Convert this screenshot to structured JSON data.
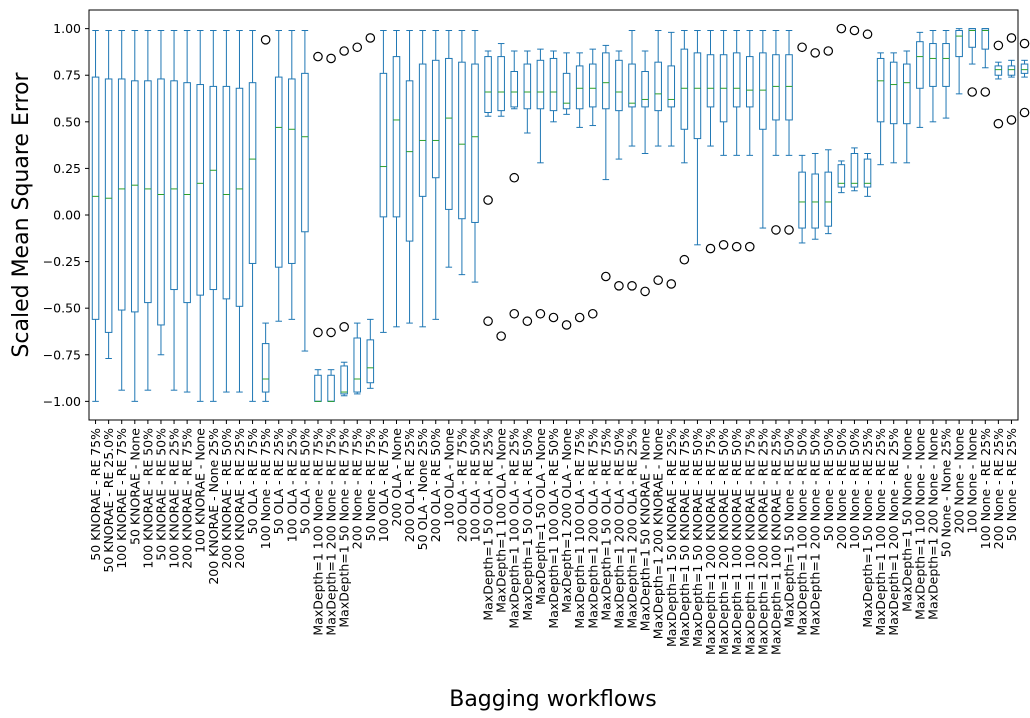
{
  "chart_data": {
    "type": "box",
    "title": "",
    "xlabel": "Bagging workflows",
    "ylabel": "Scaled Mean Square Error",
    "ylim": [
      -1.1,
      1.1
    ],
    "yticks": [
      -1.0,
      -0.75,
      -0.5,
      -0.25,
      0.0,
      0.25,
      0.5,
      0.75,
      1.0
    ],
    "ytick_labels": [
      "−1.00",
      "−0.75",
      "−0.50",
      "−0.25",
      "0.00",
      "0.25",
      "0.50",
      "0.75",
      "1.00"
    ],
    "grid": false,
    "colors": {
      "box": "#1f77b4",
      "median": "#2ca02c",
      "outlier": "#000000",
      "axis": "#000000"
    },
    "categories": [
      "50 KNORAE - RE 75%",
      "50 KNORAE - RE 25.0%",
      "100 KNORAE - RE 75%",
      "50 KNORAE - None",
      "100 KNORAE - RE 50%",
      "50 KNORAE - RE 50%",
      "100 KNORAE - RE 25%",
      "200 KNORAE - RE 75%",
      "100 KNORAE - None",
      "200 KNORAE - None 25%",
      "200 KNORAE - RE 50%",
      "200 KNORAE - RE 25%",
      "50 OLA - RE 75%",
      "100 None - RE 75%",
      "50 OLA - RE 25%",
      "100 OLA - RE 25%",
      "50 OLA - RE 50%",
      "MaxDepth=1 100 None - RE 75%",
      "MaxDepth=1 200 None - RE 75%",
      "MaxDepth=1 50 None - RE 75%",
      "200 None - RE 75%",
      "50 None - RE 75%",
      "100 OLA - RE 75%",
      "200 OLA - None",
      "200 OLA - RE 25%",
      "50 OLA - None 25%",
      "200 OLA - RE 50%",
      "100 OLA - None",
      "200 OLA - RE 75%",
      "100 OLA - RE 50%",
      "MaxDepth=1 50 OLA - RE 25%",
      "MaxDepth=1 100 OLA - None",
      "MaxDepth=1 100 OLA - RE 25%",
      "MaxDepth=1 50 OLA - RE 50%",
      "MaxDepth=1 50 OLA - None",
      "MaxDepth=1 100 OLA - RE 50%",
      "MaxDepth=1 200 OLA - None",
      "MaxDepth=1 100 OLA - RE 75%",
      "MaxDepth=1 200 OLA - RE 75%",
      "MaxDepth=1 50 OLA - RE 75%",
      "MaxDepth=1 200 OLA - RE 50%",
      "MaxDepth=1 200 OLA - RE 25%",
      "MaxDepth=1 50 KNORAE - None",
      "MaxDepth=1 200 KNORAE - None",
      "MaxDepth=1 50 KNORAE - RE 25%",
      "MaxDepth=1 50 KNORAE - RE 75%",
      "MaxDepth=1 50 KNORAE - RE 50%",
      "MaxDepth=1 200 KNORAE - RE 75%",
      "MaxDepth=1 200 KNORAE - RE 50%",
      "MaxDepth=1 100 KNORAE - RE 50%",
      "MaxDepth=1 100 KNORAE - RE 75%",
      "MaxDepth=1 200 KNORAE - RE 25%",
      "MaxDepth=1 100 KNORAE - RE 25%",
      "MaxDepth=1 50 None - RE 50%",
      "MaxDepth=1 100 None - RE 50%",
      "MaxDepth=1 200 None - RE 50%",
      "50 None - RE 50%",
      "200 None - RE 50%",
      "100 None - RE 50%",
      "MaxDepth=1 50 None - RE 25%",
      "MaxDepth=1 100 None - RE 25%",
      "MaxDepth=1 200 None - RE 25%",
      "MaxDepth=1 50 None - None",
      "MaxDepth=1 100 None - None",
      "MaxDepth=1 200 None - None",
      "50 None - None 25%",
      "200 None - None",
      "100 None - None",
      "100 None - RE 25%",
      "200 None - RE 25%",
      "50 None - RE 25%"
    ],
    "boxes": [
      {
        "q1": -0.56,
        "median": 0.1,
        "q3": 0.74,
        "wlo": -1.0,
        "whi": 0.99,
        "fliers": []
      },
      {
        "q1": -0.63,
        "median": 0.09,
        "q3": 0.73,
        "wlo": -0.77,
        "whi": 0.99,
        "fliers": []
      },
      {
        "q1": -0.51,
        "median": 0.14,
        "q3": 0.73,
        "wlo": -0.94,
        "whi": 0.99,
        "fliers": []
      },
      {
        "q1": -0.52,
        "median": 0.16,
        "q3": 0.72,
        "wlo": -1.0,
        "whi": 0.99,
        "fliers": []
      },
      {
        "q1": -0.47,
        "median": 0.14,
        "q3": 0.72,
        "wlo": -0.94,
        "whi": 0.99,
        "fliers": []
      },
      {
        "q1": -0.59,
        "median": 0.11,
        "q3": 0.73,
        "wlo": -0.75,
        "whi": 0.99,
        "fliers": []
      },
      {
        "q1": -0.4,
        "median": 0.14,
        "q3": 0.72,
        "wlo": -0.94,
        "whi": 0.99,
        "fliers": []
      },
      {
        "q1": -0.47,
        "median": 0.11,
        "q3": 0.71,
        "wlo": -0.95,
        "whi": 0.99,
        "fliers": []
      },
      {
        "q1": -0.43,
        "median": 0.17,
        "q3": 0.7,
        "wlo": -1.0,
        "whi": 0.99,
        "fliers": []
      },
      {
        "q1": -0.4,
        "median": 0.24,
        "q3": 0.69,
        "wlo": -1.0,
        "whi": 0.99,
        "fliers": []
      },
      {
        "q1": -0.45,
        "median": 0.11,
        "q3": 0.69,
        "wlo": -0.95,
        "whi": 0.99,
        "fliers": []
      },
      {
        "q1": -0.49,
        "median": 0.14,
        "q3": 0.68,
        "wlo": -0.95,
        "whi": 0.99,
        "fliers": []
      },
      {
        "q1": -0.26,
        "median": 0.3,
        "q3": 0.71,
        "wlo": -1.0,
        "whi": 0.99,
        "fliers": []
      },
      {
        "q1": -0.95,
        "median": -0.88,
        "q3": -0.69,
        "wlo": -1.0,
        "whi": -0.58,
        "fliers": [
          0.94
        ]
      },
      {
        "q1": -0.28,
        "median": 0.47,
        "q3": 0.74,
        "wlo": -0.57,
        "whi": 0.99,
        "fliers": []
      },
      {
        "q1": -0.26,
        "median": 0.46,
        "q3": 0.73,
        "wlo": -0.56,
        "whi": 0.99,
        "fliers": []
      },
      {
        "q1": -0.09,
        "median": 0.42,
        "q3": 0.76,
        "wlo": -0.73,
        "whi": 0.99,
        "fliers": []
      },
      {
        "q1": -1.0,
        "median": -1.0,
        "q3": -0.86,
        "wlo": -1.0,
        "whi": -0.83,
        "fliers": [
          0.85,
          -0.63
        ]
      },
      {
        "q1": -1.0,
        "median": -1.0,
        "q3": -0.86,
        "wlo": -1.0,
        "whi": -0.83,
        "fliers": [
          0.84,
          -0.63
        ]
      },
      {
        "q1": -0.96,
        "median": -0.95,
        "q3": -0.81,
        "wlo": -0.97,
        "whi": -0.79,
        "fliers": [
          0.88,
          -0.6
        ]
      },
      {
        "q1": -0.95,
        "median": -0.88,
        "q3": -0.66,
        "wlo": -0.96,
        "whi": -0.58,
        "fliers": [
          0.9
        ]
      },
      {
        "q1": -0.9,
        "median": -0.82,
        "q3": -0.67,
        "wlo": -0.93,
        "whi": -0.56,
        "fliers": [
          0.95
        ]
      },
      {
        "q1": -0.01,
        "median": 0.26,
        "q3": 0.76,
        "wlo": -0.63,
        "whi": 0.99,
        "fliers": []
      },
      {
        "q1": -0.01,
        "median": 0.51,
        "q3": 0.85,
        "wlo": -0.6,
        "whi": 0.99,
        "fliers": []
      },
      {
        "q1": -0.14,
        "median": 0.34,
        "q3": 0.72,
        "wlo": -0.58,
        "whi": 0.99,
        "fliers": []
      },
      {
        "q1": 0.1,
        "median": 0.4,
        "q3": 0.81,
        "wlo": -0.6,
        "whi": 0.99,
        "fliers": []
      },
      {
        "q1": 0.2,
        "median": 0.4,
        "q3": 0.83,
        "wlo": -0.56,
        "whi": 0.99,
        "fliers": []
      },
      {
        "q1": 0.03,
        "median": 0.52,
        "q3": 0.84,
        "wlo": -0.28,
        "whi": 0.99,
        "fliers": []
      },
      {
        "q1": -0.02,
        "median": 0.38,
        "q3": 0.82,
        "wlo": -0.32,
        "whi": 0.99,
        "fliers": []
      },
      {
        "q1": -0.04,
        "median": 0.42,
        "q3": 0.81,
        "wlo": -0.36,
        "whi": 0.99,
        "fliers": []
      },
      {
        "q1": 0.55,
        "median": 0.66,
        "q3": 0.85,
        "wlo": 0.53,
        "whi": 0.88,
        "fliers": [
          0.08,
          -0.57
        ]
      },
      {
        "q1": 0.56,
        "median": 0.66,
        "q3": 0.85,
        "wlo": 0.53,
        "whi": 0.92,
        "fliers": [
          -0.65
        ]
      },
      {
        "q1": 0.58,
        "median": 0.66,
        "q3": 0.77,
        "wlo": 0.57,
        "whi": 0.88,
        "fliers": [
          0.2,
          -0.53
        ]
      },
      {
        "q1": 0.57,
        "median": 0.66,
        "q3": 0.81,
        "wlo": 0.44,
        "whi": 0.88,
        "fliers": [
          -0.57
        ]
      },
      {
        "q1": 0.57,
        "median": 0.66,
        "q3": 0.83,
        "wlo": 0.28,
        "whi": 0.89,
        "fliers": [
          -0.53
        ]
      },
      {
        "q1": 0.56,
        "median": 0.66,
        "q3": 0.84,
        "wlo": 0.5,
        "whi": 0.88,
        "fliers": [
          -0.55
        ]
      },
      {
        "q1": 0.57,
        "median": 0.6,
        "q3": 0.76,
        "wlo": 0.54,
        "whi": 0.87,
        "fliers": [
          -0.59
        ]
      },
      {
        "q1": 0.57,
        "median": 0.68,
        "q3": 0.8,
        "wlo": 0.47,
        "whi": 0.87,
        "fliers": [
          -0.55
        ]
      },
      {
        "q1": 0.58,
        "median": 0.68,
        "q3": 0.81,
        "wlo": 0.48,
        "whi": 0.89,
        "fliers": [
          -0.53
        ]
      },
      {
        "q1": 0.57,
        "median": 0.71,
        "q3": 0.87,
        "wlo": 0.19,
        "whi": 0.91,
        "fliers": [
          -0.33
        ]
      },
      {
        "q1": 0.56,
        "median": 0.66,
        "q3": 0.83,
        "wlo": 0.3,
        "whi": 0.88,
        "fliers": [
          -0.38
        ]
      },
      {
        "q1": 0.58,
        "median": 0.6,
        "q3": 0.81,
        "wlo": 0.37,
        "whi": 0.99,
        "fliers": [
          -0.38
        ]
      },
      {
        "q1": 0.58,
        "median": 0.62,
        "q3": 0.77,
        "wlo": 0.33,
        "whi": 0.88,
        "fliers": [
          -0.41
        ]
      },
      {
        "q1": 0.56,
        "median": 0.65,
        "q3": 0.82,
        "wlo": 0.37,
        "whi": 0.99,
        "fliers": [
          -0.35
        ]
      },
      {
        "q1": 0.58,
        "median": 0.62,
        "q3": 0.8,
        "wlo": 0.37,
        "whi": 0.98,
        "fliers": [
          -0.37
        ]
      },
      {
        "q1": 0.46,
        "median": 0.68,
        "q3": 0.89,
        "wlo": 0.28,
        "whi": 0.99,
        "fliers": [
          -0.24
        ]
      },
      {
        "q1": 0.41,
        "median": 0.68,
        "q3": 0.87,
        "wlo": -0.16,
        "whi": 0.99,
        "fliers": []
      },
      {
        "q1": 0.58,
        "median": 0.68,
        "q3": 0.86,
        "wlo": 0.37,
        "whi": 0.99,
        "fliers": [
          -0.18
        ]
      },
      {
        "q1": 0.5,
        "median": 0.68,
        "q3": 0.86,
        "wlo": 0.32,
        "whi": 0.99,
        "fliers": [
          -0.16
        ]
      },
      {
        "q1": 0.58,
        "median": 0.68,
        "q3": 0.87,
        "wlo": 0.32,
        "whi": 0.99,
        "fliers": [
          -0.17
        ]
      },
      {
        "q1": 0.58,
        "median": 0.67,
        "q3": 0.85,
        "wlo": 0.32,
        "whi": 0.99,
        "fliers": [
          -0.17
        ]
      },
      {
        "q1": 0.46,
        "median": 0.67,
        "q3": 0.87,
        "wlo": -0.07,
        "whi": 0.99,
        "fliers": []
      },
      {
        "q1": 0.51,
        "median": 0.69,
        "q3": 0.86,
        "wlo": 0.32,
        "whi": 0.99,
        "fliers": [
          -0.08
        ]
      },
      {
        "q1": 0.51,
        "median": 0.69,
        "q3": 0.86,
        "wlo": 0.32,
        "whi": 0.99,
        "fliers": [
          -0.08
        ]
      },
      {
        "q1": -0.07,
        "median": 0.07,
        "q3": 0.23,
        "wlo": -0.15,
        "whi": 0.32,
        "fliers": [
          0.9
        ]
      },
      {
        "q1": -0.07,
        "median": 0.07,
        "q3": 0.22,
        "wlo": -0.13,
        "whi": 0.33,
        "fliers": [
          0.87
        ]
      },
      {
        "q1": -0.06,
        "median": 0.07,
        "q3": 0.23,
        "wlo": -0.1,
        "whi": 0.35,
        "fliers": [
          0.88
        ]
      },
      {
        "q1": 0.15,
        "median": 0.17,
        "q3": 0.27,
        "wlo": 0.12,
        "whi": 0.29,
        "fliers": [
          1.0
        ]
      },
      {
        "q1": 0.15,
        "median": 0.17,
        "q3": 0.33,
        "wlo": 0.13,
        "whi": 0.36,
        "fliers": [
          0.99
        ]
      },
      {
        "q1": 0.15,
        "median": 0.17,
        "q3": 0.3,
        "wlo": 0.1,
        "whi": 0.33,
        "fliers": [
          0.97
        ]
      },
      {
        "q1": 0.5,
        "median": 0.72,
        "q3": 0.84,
        "wlo": 0.27,
        "whi": 0.87,
        "fliers": []
      },
      {
        "q1": 0.49,
        "median": 0.7,
        "q3": 0.82,
        "wlo": 0.28,
        "whi": 0.87,
        "fliers": []
      },
      {
        "q1": 0.49,
        "median": 0.71,
        "q3": 0.81,
        "wlo": 0.28,
        "whi": 0.88,
        "fliers": []
      },
      {
        "q1": 0.68,
        "median": 0.85,
        "q3": 0.93,
        "wlo": 0.47,
        "whi": 0.98,
        "fliers": []
      },
      {
        "q1": 0.69,
        "median": 0.84,
        "q3": 0.92,
        "wlo": 0.5,
        "whi": 0.99,
        "fliers": []
      },
      {
        "q1": 0.69,
        "median": 0.84,
        "q3": 0.92,
        "wlo": 0.52,
        "whi": 0.99,
        "fliers": []
      },
      {
        "q1": 0.85,
        "median": 0.96,
        "q3": 0.99,
        "wlo": 0.65,
        "whi": 1.0,
        "fliers": []
      },
      {
        "q1": 0.9,
        "median": 0.99,
        "q3": 1.0,
        "wlo": 0.81,
        "whi": 1.0,
        "fliers": [
          0.66
        ]
      },
      {
        "q1": 0.89,
        "median": 0.99,
        "q3": 1.0,
        "wlo": 0.79,
        "whi": 1.0,
        "fliers": [
          0.66
        ]
      },
      {
        "q1": 0.75,
        "median": 0.78,
        "q3": 0.8,
        "wlo": 0.73,
        "whi": 0.82,
        "fliers": [
          0.91,
          0.49
        ]
      },
      {
        "q1": 0.75,
        "median": 0.78,
        "q3": 0.8,
        "wlo": 0.74,
        "whi": 0.83,
        "fliers": [
          0.95,
          0.51
        ]
      },
      {
        "q1": 0.76,
        "median": 0.78,
        "q3": 0.81,
        "wlo": 0.74,
        "whi": 0.83,
        "fliers": [
          0.92,
          0.55
        ]
      }
    ]
  }
}
